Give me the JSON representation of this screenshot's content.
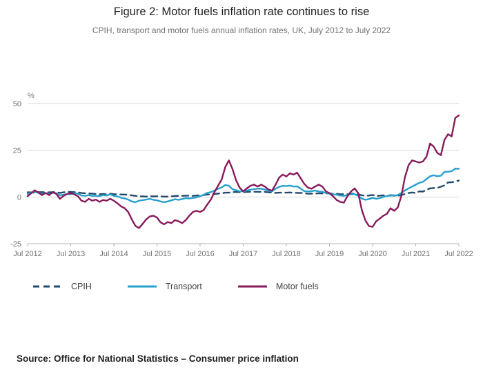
{
  "title": "Figure 2: Motor fuels inflation rate continues to rise",
  "subtitle": "CPIH, transport and motor fuels annual inflation rates, UK, July 2012 to July 2022",
  "source": "Source: Office for National Statistics – Consumer price inflation",
  "y_axis_unit": "%",
  "colors": {
    "cpih": "#234a6d",
    "transport": "#27a0cc",
    "motor_fuels": "#871a5b",
    "gridline": "#d9d9d9",
    "axis": "#b1b4b6",
    "tick_text": "#707071"
  },
  "chart_data": {
    "type": "line",
    "x_start": "Jul 2012",
    "x_end": "Jul 2022",
    "frequency": "monthly",
    "x_tick_labels": [
      "Jul 2012",
      "Jul 2013",
      "Jul 2014",
      "Jul 2015",
      "Jul 2016",
      "Jul 2017",
      "Jul 2018",
      "Jul 2019",
      "Jul 2020",
      "Jul 2021",
      "Jul 2022"
    ],
    "ylim": [
      -25,
      50
    ],
    "y_ticks": [
      50,
      25,
      0,
      -25
    ],
    "grid": true,
    "legend_position": "bottom-left",
    "series": [
      {
        "name": "CPIH",
        "color": "#234a6d",
        "dash": "9 6",
        "values": [
          2.5,
          2.5,
          2.2,
          2.6,
          2.6,
          2.5,
          2.5,
          2.6,
          2.6,
          2.2,
          2.5,
          2.7,
          2.7,
          2.6,
          2.5,
          2.1,
          2.0,
          1.9,
          1.8,
          1.6,
          1.5,
          1.6,
          1.4,
          1.8,
          1.5,
          1.5,
          1.3,
          1.3,
          1.1,
          0.9,
          0.6,
          0.4,
          0.3,
          0.2,
          0.4,
          0.3,
          0.4,
          0.3,
          0.2,
          0.2,
          0.4,
          0.5,
          0.6,
          0.6,
          0.7,
          0.7,
          0.6,
          0.8,
          0.9,
          1.0,
          1.3,
          1.4,
          1.6,
          1.8,
          2.0,
          2.3,
          2.3,
          2.6,
          2.7,
          2.6,
          2.6,
          2.7,
          2.8,
          2.8,
          2.8,
          2.7,
          2.7,
          2.5,
          2.3,
          2.2,
          2.3,
          2.3,
          2.3,
          2.4,
          2.2,
          2.2,
          2.2,
          2.0,
          1.8,
          1.8,
          1.8,
          2.0,
          1.9,
          1.9,
          2.0,
          1.7,
          1.7,
          1.5,
          1.5,
          1.4,
          1.8,
          1.7,
          1.5,
          0.9,
          0.7,
          0.8,
          1.1,
          0.5,
          0.7,
          0.9,
          0.6,
          0.8,
          0.9,
          0.7,
          1.0,
          1.6,
          2.1,
          2.4,
          2.1,
          3.0,
          2.9,
          3.8,
          4.6,
          4.8,
          4.9,
          5.5,
          6.2,
          7.8,
          7.9,
          8.2,
          8.8
        ]
      },
      {
        "name": "Transport",
        "color": "#27a0cc",
        "dash": null,
        "values": [
          1.6,
          2.3,
          2.8,
          2.2,
          1.8,
          2.1,
          1.5,
          2.3,
          2.0,
          0.9,
          1.2,
          1.6,
          1.5,
          2.0,
          1.8,
          0.8,
          0.6,
          1.0,
          0.6,
          0.6,
          0.5,
          1.0,
          0.8,
          1.4,
          0.6,
          0.3,
          -0.4,
          -0.8,
          -1.4,
          -2.4,
          -2.8,
          -2.0,
          -1.7,
          -1.4,
          -1.0,
          -1.5,
          -1.8,
          -2.4,
          -2.8,
          -2.4,
          -1.8,
          -1.2,
          -1.5,
          -1.1,
          -0.6,
          -0.8,
          -0.5,
          -0.2,
          0.4,
          1.2,
          2.2,
          2.6,
          3.4,
          4.4,
          5.1,
          6.4,
          6.0,
          4.2,
          3.6,
          3.1,
          3.0,
          3.5,
          3.9,
          4.2,
          4.5,
          4.4,
          4.0,
          3.4,
          3.0,
          4.4,
          5.4,
          6.0,
          5.8,
          6.1,
          5.6,
          5.7,
          4.5,
          3.1,
          3.0,
          3.1,
          3.4,
          3.0,
          2.8,
          2.1,
          1.8,
          1.4,
          1.2,
          0.8,
          0.6,
          1.0,
          1.4,
          1.5,
          0.6,
          -0.9,
          -1.5,
          -1.1,
          -0.5,
          -1.0,
          -0.6,
          0.1,
          0.5,
          1.1,
          0.6,
          1.1,
          2.1,
          3.5,
          4.6,
          5.6,
          6.6,
          7.6,
          8.1,
          9.6,
          11.1,
          11.6,
          11.1,
          11.4,
          13.4,
          13.5,
          13.8,
          15.2,
          15.1
        ]
      },
      {
        "name": "Motor fuels",
        "color": "#871a5b",
        "dash": null,
        "values": [
          0.4,
          2.0,
          3.6,
          2.4,
          1.0,
          2.1,
          1.0,
          2.6,
          1.6,
          -1.0,
          0.6,
          1.6,
          2.0,
          1.4,
          0.4,
          -2.0,
          -2.6,
          -1.0,
          -2.0,
          -1.4,
          -2.6,
          -1.6,
          -2.0,
          -1.0,
          -2.0,
          -3.4,
          -5.0,
          -6.0,
          -8.0,
          -12.0,
          -15.5,
          -16.6,
          -14.4,
          -12.0,
          -10.4,
          -10.0,
          -11.0,
          -13.6,
          -14.6,
          -13.4,
          -14.0,
          -12.4,
          -13.0,
          -14.0,
          -12.4,
          -10.0,
          -8.0,
          -7.4,
          -8.0,
          -7.0,
          -4.0,
          -1.4,
          2.6,
          6.0,
          9.4,
          16.0,
          19.6,
          15.0,
          9.0,
          5.0,
          3.0,
          4.6,
          6.0,
          6.6,
          5.6,
          6.6,
          5.6,
          4.0,
          3.4,
          6.6,
          10.4,
          12.0,
          11.0,
          12.6,
          12.0,
          13.0,
          10.0,
          7.0,
          5.0,
          4.4,
          5.6,
          6.6,
          5.6,
          3.0,
          2.0,
          0.4,
          -1.6,
          -2.6,
          -3.0,
          0.4,
          3.0,
          4.6,
          2.0,
          -7.0,
          -12.6,
          -15.6,
          -16.0,
          -13.0,
          -11.6,
          -10.0,
          -9.0,
          -6.0,
          -7.4,
          -5.6,
          0.6,
          10.6,
          17.0,
          19.6,
          19.0,
          18.4,
          19.0,
          21.6,
          28.6,
          27.0,
          23.6,
          22.4,
          30.6,
          33.6,
          32.4,
          42.3,
          43.7
        ]
      }
    ]
  }
}
